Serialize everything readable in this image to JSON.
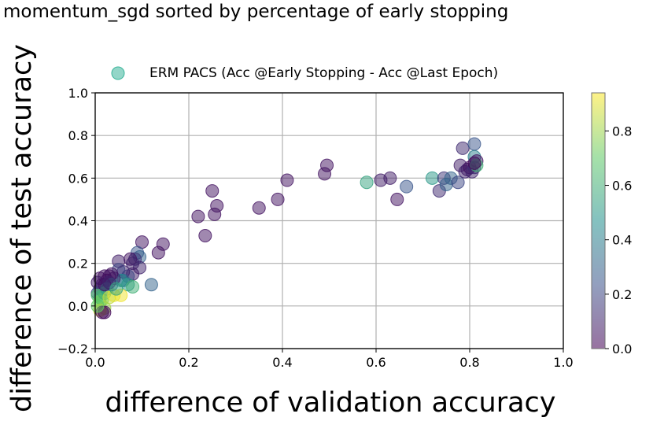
{
  "chart_data": {
    "type": "scatter",
    "title": "momentum_sgd sorted by percentage of early stopping",
    "xlabel": "difference of validation accuracy",
    "ylabel": "difference of test accuracy",
    "xlim": [
      0.0,
      1.0
    ],
    "ylim": [
      -0.2,
      1.0
    ],
    "xticks": [
      "0.0",
      "0.2",
      "0.4",
      "0.6",
      "0.8",
      "1.0"
    ],
    "yticks": [
      "−0.2",
      "0.0",
      "0.2",
      "0.4",
      "0.6",
      "0.8",
      "1.0"
    ],
    "grid": true,
    "legend": {
      "label": "ERM PACS (Acc @Early Stopping - Acc @Last Epoch)",
      "placement": "top",
      "color": "#3bb59b"
    },
    "colorbar": {
      "colormap": "viridis",
      "range": [
        0.0,
        0.94
      ],
      "ticks": [
        "0.0",
        "0.2",
        "0.4",
        "0.6",
        "0.8"
      ]
    },
    "series": [
      {
        "points": [
          {
            "x": 0.25,
            "y": 0.54,
            "c": 0.05
          },
          {
            "x": 0.22,
            "y": 0.42,
            "c": 0.05
          },
          {
            "x": 0.26,
            "y": 0.47,
            "c": 0.05
          },
          {
            "x": 0.255,
            "y": 0.43,
            "c": 0.05
          },
          {
            "x": 0.235,
            "y": 0.33,
            "c": 0.05
          },
          {
            "x": 0.35,
            "y": 0.46,
            "c": 0.05
          },
          {
            "x": 0.39,
            "y": 0.5,
            "c": 0.05
          },
          {
            "x": 0.41,
            "y": 0.59,
            "c": 0.05
          },
          {
            "x": 0.495,
            "y": 0.66,
            "c": 0.05
          },
          {
            "x": 0.49,
            "y": 0.62,
            "c": 0.05
          },
          {
            "x": 0.58,
            "y": 0.58,
            "c": 0.55
          },
          {
            "x": 0.61,
            "y": 0.59,
            "c": 0.08
          },
          {
            "x": 0.63,
            "y": 0.6,
            "c": 0.08
          },
          {
            "x": 0.645,
            "y": 0.5,
            "c": 0.05
          },
          {
            "x": 0.665,
            "y": 0.56,
            "c": 0.25
          },
          {
            "x": 0.72,
            "y": 0.6,
            "c": 0.5
          },
          {
            "x": 0.735,
            "y": 0.54,
            "c": 0.12
          },
          {
            "x": 0.745,
            "y": 0.6,
            "c": 0.15
          },
          {
            "x": 0.75,
            "y": 0.57,
            "c": 0.3
          },
          {
            "x": 0.76,
            "y": 0.6,
            "c": 0.3
          },
          {
            "x": 0.775,
            "y": 0.58,
            "c": 0.2
          },
          {
            "x": 0.78,
            "y": 0.66,
            "c": 0.08
          },
          {
            "x": 0.785,
            "y": 0.74,
            "c": 0.12
          },
          {
            "x": 0.79,
            "y": 0.63,
            "c": 0.1
          },
          {
            "x": 0.795,
            "y": 0.64,
            "c": 0.08
          },
          {
            "x": 0.8,
            "y": 0.65,
            "c": 0.05
          },
          {
            "x": 0.805,
            "y": 0.63,
            "c": 0.1
          },
          {
            "x": 0.81,
            "y": 0.65,
            "c": 0.12
          },
          {
            "x": 0.81,
            "y": 0.76,
            "c": 0.25
          },
          {
            "x": 0.81,
            "y": 0.7,
            "c": 0.4
          },
          {
            "x": 0.815,
            "y": 0.68,
            "c": 0.05
          },
          {
            "x": 0.815,
            "y": 0.66,
            "c": 0.6
          },
          {
            "x": 0.81,
            "y": 0.67,
            "c": 0.02
          },
          {
            "x": 0.1,
            "y": 0.3,
            "c": 0.05
          },
          {
            "x": 0.145,
            "y": 0.29,
            "c": 0.05
          },
          {
            "x": 0.135,
            "y": 0.25,
            "c": 0.05
          },
          {
            "x": 0.12,
            "y": 0.1,
            "c": 0.3
          },
          {
            "x": 0.09,
            "y": 0.25,
            "c": 0.25
          },
          {
            "x": 0.095,
            "y": 0.23,
            "c": 0.3
          },
          {
            "x": 0.085,
            "y": 0.22,
            "c": 0.15
          },
          {
            "x": 0.075,
            "y": 0.22,
            "c": 0.05
          },
          {
            "x": 0.08,
            "y": 0.2,
            "c": 0.1
          },
          {
            "x": 0.095,
            "y": 0.18,
            "c": 0.1
          },
          {
            "x": 0.08,
            "y": 0.15,
            "c": 0.08
          },
          {
            "x": 0.07,
            "y": 0.14,
            "c": 0.2
          },
          {
            "x": 0.06,
            "y": 0.16,
            "c": 0.1
          },
          {
            "x": 0.05,
            "y": 0.21,
            "c": 0.08
          },
          {
            "x": 0.05,
            "y": 0.17,
            "c": 0.2
          },
          {
            "x": 0.06,
            "y": 0.12,
            "c": 0.3
          },
          {
            "x": 0.055,
            "y": 0.12,
            "c": 0.45
          },
          {
            "x": 0.07,
            "y": 0.1,
            "c": 0.5
          },
          {
            "x": 0.08,
            "y": 0.09,
            "c": 0.6
          },
          {
            "x": 0.04,
            "y": 0.13,
            "c": 0.1
          },
          {
            "x": 0.035,
            "y": 0.15,
            "c": 0.05
          },
          {
            "x": 0.03,
            "y": 0.14,
            "c": 0.05
          },
          {
            "x": 0.025,
            "y": 0.12,
            "c": 0.02
          },
          {
            "x": 0.02,
            "y": 0.14,
            "c": 0.05
          },
          {
            "x": 0.015,
            "y": 0.1,
            "c": 0.05
          },
          {
            "x": 0.01,
            "y": 0.13,
            "c": 0.05
          },
          {
            "x": 0.01,
            "y": 0.08,
            "c": 0.1
          },
          {
            "x": 0.005,
            "y": 0.11,
            "c": 0.08
          },
          {
            "x": 0.005,
            "y": 0.06,
            "c": 0.2
          },
          {
            "x": 0.01,
            "y": 0.04,
            "c": 0.55
          },
          {
            "x": 0.005,
            "y": 0.05,
            "c": 0.65
          },
          {
            "x": 0.01,
            "y": 0.02,
            "c": 0.75
          },
          {
            "x": 0.015,
            "y": 0.03,
            "c": 0.7
          },
          {
            "x": 0.02,
            "y": 0.06,
            "c": 0.6
          },
          {
            "x": 0.025,
            "y": 0.08,
            "c": 0.5
          },
          {
            "x": 0.03,
            "y": 0.04,
            "c": 0.85
          },
          {
            "x": 0.04,
            "y": 0.05,
            "c": 0.9
          },
          {
            "x": 0.055,
            "y": 0.05,
            "c": 0.92
          },
          {
            "x": 0.035,
            "y": 0.1,
            "c": 0.35
          },
          {
            "x": 0.02,
            "y": -0.01,
            "c": 0.8
          },
          {
            "x": 0.01,
            "y": -0.02,
            "c": 0.9
          },
          {
            "x": 0.015,
            "y": -0.03,
            "c": 0.02
          },
          {
            "x": 0.02,
            "y": -0.03,
            "c": 0.02
          },
          {
            "x": 0.005,
            "y": 0.0,
            "c": 0.7
          },
          {
            "x": 0.02,
            "y": 0.1,
            "c": 0.05
          },
          {
            "x": 0.03,
            "y": 0.11,
            "c": 0.1
          },
          {
            "x": 0.045,
            "y": 0.08,
            "c": 0.55
          }
        ]
      }
    ]
  }
}
